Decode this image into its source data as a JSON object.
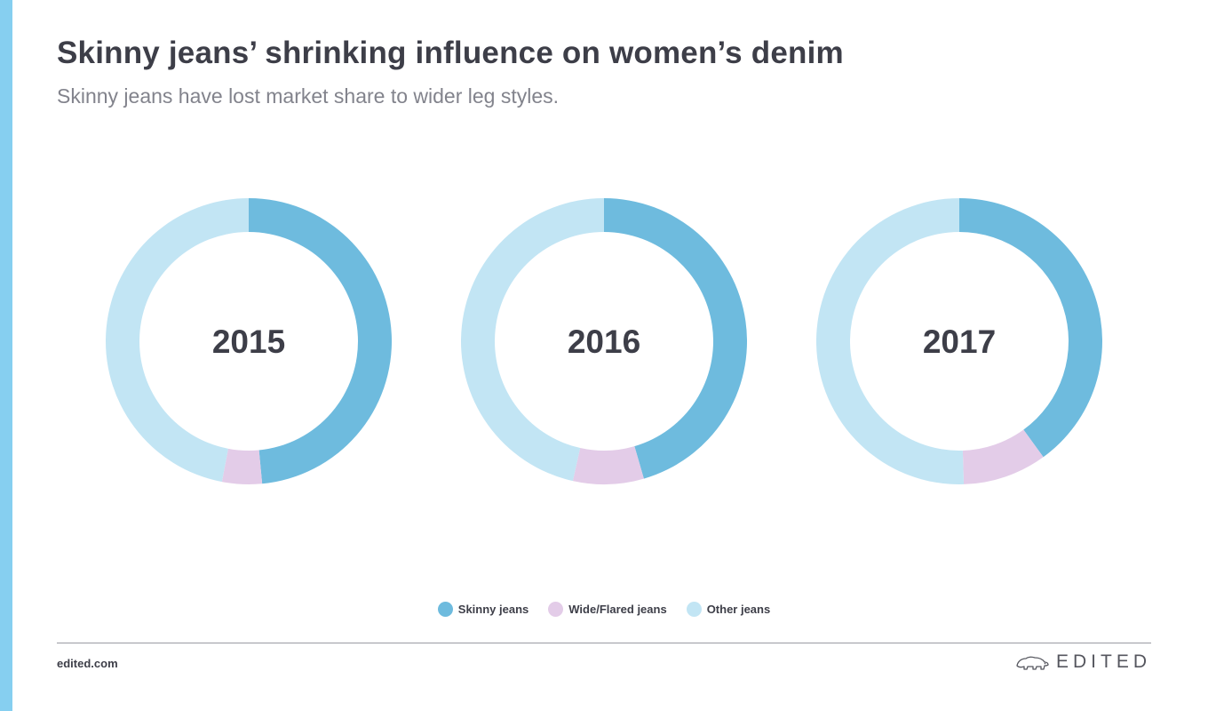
{
  "header": {
    "title": "Skinny jeans’ shrinking influence on women’s denim",
    "subtitle": "Skinny jeans have lost market share to wider leg styles."
  },
  "chart_data": [
    {
      "type": "pie",
      "title": "2015",
      "categories": [
        "Skinny jeans",
        "Wide/Flared jeans",
        "Other jeans"
      ],
      "values": [
        48.5,
        4.5,
        47.0
      ]
    },
    {
      "type": "pie",
      "title": "2016",
      "categories": [
        "Skinny jeans",
        "Wide/Flared jeans",
        "Other jeans"
      ],
      "values": [
        45.5,
        8.0,
        46.5
      ]
    },
    {
      "type": "pie",
      "title": "2017",
      "categories": [
        "Skinny jeans",
        "Wide/Flared jeans",
        "Other jeans"
      ],
      "values": [
        40.0,
        9.5,
        50.5
      ]
    }
  ],
  "legend": {
    "position": "bottom-center",
    "items": [
      {
        "label": "Skinny jeans",
        "color": "#6ebbde"
      },
      {
        "label": "Wide/Flared jeans",
        "color": "#e3cce8"
      },
      {
        "label": "Other jeans",
        "color": "#c2e5f4"
      }
    ]
  },
  "colors": {
    "skinny": "#6ebbde",
    "wide": "#e3cce8",
    "other": "#c2e5f4",
    "accent_bar": "#86cff0"
  },
  "footer": {
    "site": "edited.com",
    "brand": "EDITED",
    "brand_icon": "polar-bear-icon"
  }
}
